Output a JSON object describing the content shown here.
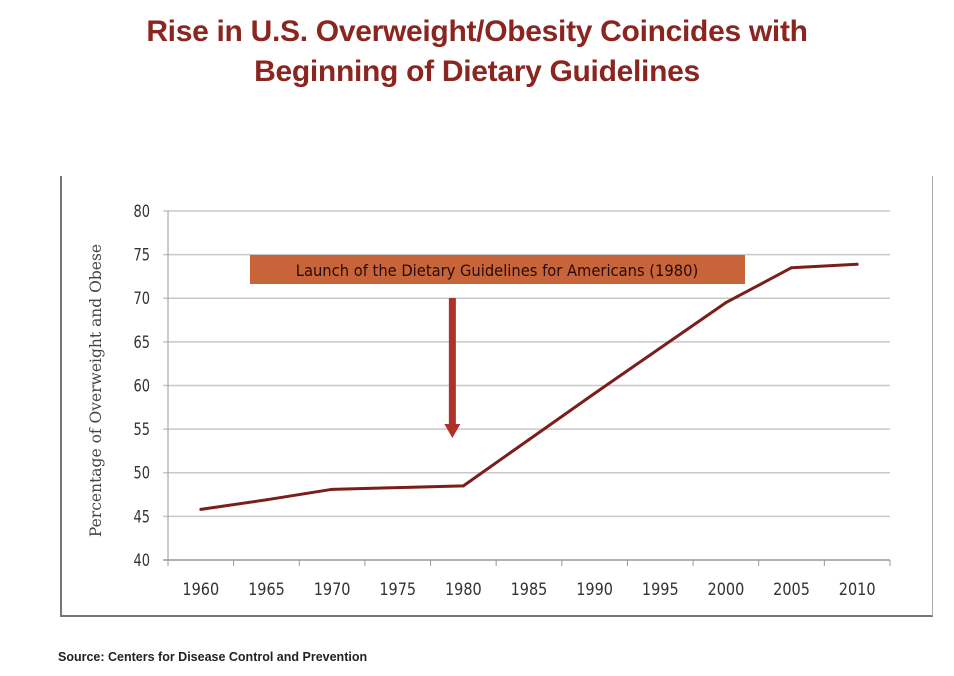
{
  "title_line1": "Rise in U.S. Overweight/Obesity Coincides with",
  "title_line2": "Beginning of Dietary Guidelines",
  "source": "Source: Centers for Disease Control and Prevention",
  "colors": {
    "title": "#8b2520",
    "line": "#7a1e1a",
    "annotation_bg": "#c8643a",
    "arrow": "#b0302a"
  },
  "chart_data": {
    "type": "line",
    "title": "Rise in U.S. Overweight/Obesity Coincides with Beginning of Dietary Guidelines",
    "xlabel": "",
    "ylabel": "Percentage of Overweight and Obese",
    "categories": [
      "1960",
      "1965",
      "1970",
      "1975",
      "1980",
      "1985",
      "1990",
      "1995",
      "2000",
      "2005",
      "2010"
    ],
    "series": [
      {
        "name": "Overweight and Obese (%)",
        "values": [
          45.8,
          46.9,
          48.1,
          48.3,
          48.5,
          53.8,
          59.1,
          64.3,
          69.5,
          73.5,
          73.9
        ]
      }
    ],
    "ylim": [
      40,
      80
    ],
    "yticks": [
      40,
      45,
      50,
      55,
      60,
      65,
      70,
      75,
      80
    ],
    "grid": true,
    "annotation": {
      "text": "Launch of the Dietary Guidelines for Americans (1980)",
      "x": "1980"
    }
  }
}
